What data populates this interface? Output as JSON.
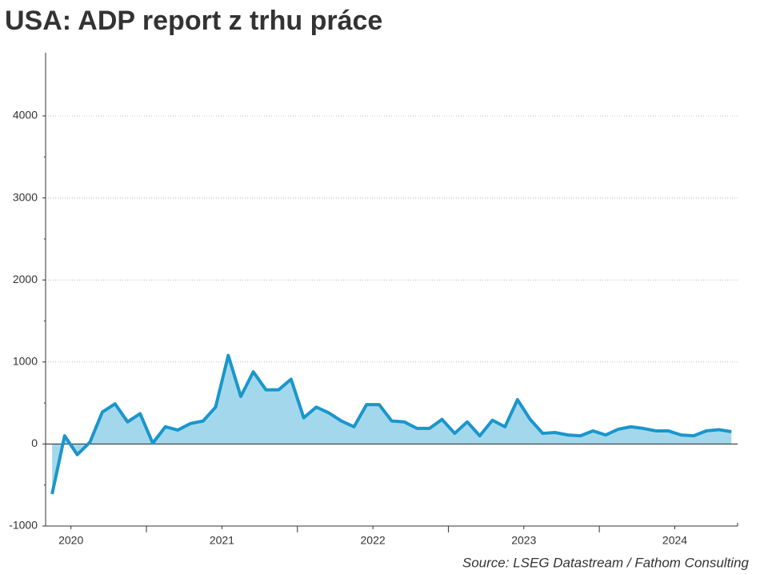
{
  "chart_data": {
    "type": "area",
    "title": "USA: ADP report z trhu práce",
    "source": "Source: LSEG Datastream / Fathom Consulting",
    "x": [
      2020.375,
      2020.458,
      2020.542,
      2020.625,
      2020.708,
      2020.792,
      2020.875,
      2020.958,
      2021.042,
      2021.125,
      2021.208,
      2021.292,
      2021.375,
      2021.458,
      2021.542,
      2021.625,
      2021.708,
      2021.792,
      2021.875,
      2021.958,
      2022.042,
      2022.125,
      2022.208,
      2022.292,
      2022.375,
      2022.458,
      2022.542,
      2022.625,
      2022.708,
      2022.792,
      2022.875,
      2022.958,
      2023.042,
      2023.125,
      2023.208,
      2023.292,
      2023.375,
      2023.458,
      2023.542,
      2023.625,
      2023.708,
      2023.792,
      2023.875,
      2023.958,
      2024.042,
      2024.125,
      2024.208,
      2024.292,
      2024.375,
      2024.458,
      2024.542,
      2024.625,
      2024.708,
      2024.792,
      2024.875
    ],
    "series": [
      {
        "name": "ADP",
        "color": "#1a96cc",
        "fill": "#a3d8ec",
        "values": [
          -610,
          100,
          -130,
          20,
          390,
          490,
          270,
          370,
          10,
          210,
          170,
          250,
          280,
          450,
          1080,
          580,
          880,
          660,
          660,
          790,
          320,
          450,
          380,
          280,
          210,
          480,
          480,
          280,
          270,
          190,
          190,
          300,
          130,
          270,
          100,
          290,
          210,
          540,
          300,
          130,
          140,
          110,
          100,
          160,
          110,
          180,
          210,
          190,
          160,
          160,
          110,
          100,
          160,
          175,
          150
        ]
      }
    ],
    "xlim": [
      2020.332,
      2024.916
    ],
    "xticks": [
      {
        "value": 2020.5,
        "label": "2020"
      },
      {
        "value": 2021.5,
        "label": "2021"
      },
      {
        "value": 2022.5,
        "label": "2022"
      },
      {
        "value": 2023.5,
        "label": "2023"
      },
      {
        "value": 2024.5,
        "label": "2024"
      }
    ],
    "x_year_ticks": [
      2021,
      2022,
      2023,
      2024
    ],
    "ylim": [
      -1000,
      4770
    ],
    "yticks": [
      -1000,
      0,
      1000,
      2000,
      3000,
      4000
    ],
    "grid": true
  }
}
